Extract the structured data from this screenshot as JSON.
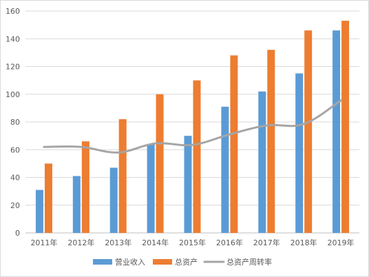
{
  "chart_data": {
    "type": "bar",
    "categories": [
      "2011年",
      "2012年",
      "2013年",
      "2014年",
      "2015年",
      "2016年",
      "2017年",
      "2018年",
      "2019年"
    ],
    "series": [
      {
        "name": "营业收入",
        "type": "bar",
        "color": "#5B9BD5",
        "values": [
          31,
          41,
          47,
          64,
          70,
          91,
          102,
          115,
          146
        ]
      },
      {
        "name": "总资产",
        "type": "bar",
        "color": "#ED7D31",
        "values": [
          50,
          66,
          82,
          100,
          110,
          128,
          132,
          146,
          153
        ]
      },
      {
        "name": "总资产周转率",
        "type": "line",
        "color": "#A5A5A5",
        "values": [
          62,
          62,
          58,
          64.5,
          63.5,
          71,
          77.5,
          78.5,
          95.5
        ]
      }
    ],
    "y_ticks": [
      "0",
      "20",
      "40",
      "60",
      "80",
      "100",
      "120",
      "140",
      "160"
    ],
    "ylim": [
      0,
      160
    ],
    "grid": true,
    "legend_position": "bottom"
  }
}
